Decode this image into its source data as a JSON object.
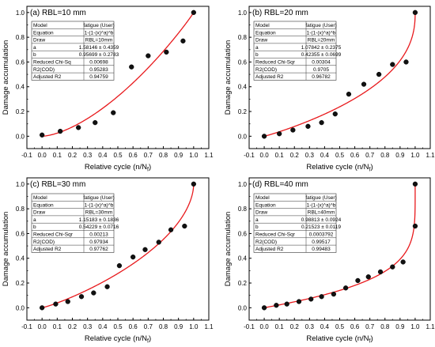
{
  "figure": {
    "shared_ylabel": "Damage accumulation",
    "shared_xlabel": "Relative cycle (n/N",
    "shared_xlabel_sub": "f",
    "shared_xlabel_close": ")"
  },
  "chart_data": [
    {
      "type": "scatter",
      "title": "(a) RBL=10 mm",
      "xlabel": "Relative cycle (n/Nf)",
      "ylabel": "Damage accumulation",
      "xlim": [
        -0.1,
        1.1
      ],
      "ylim": [
        -0.1,
        1.05
      ],
      "xticks": [
        "-0.1",
        "0.0",
        "0.1",
        "0.2",
        "0.3",
        "0.4",
        "0.5",
        "0.6",
        "0.7",
        "0.8",
        "0.9",
        "1.0",
        "1.1"
      ],
      "yticks": [
        "0.0",
        "0.2",
        "0.4",
        "0.6",
        "0.8",
        "1.0"
      ],
      "series": [
        {
          "x": [
            0.0,
            0.12,
            0.24,
            0.35,
            0.47,
            0.59,
            0.7,
            0.82,
            0.93,
            1.0
          ],
          "y": [
            0.01,
            0.04,
            0.07,
            0.11,
            0.19,
            0.56,
            0.65,
            0.68,
            0.77,
            1.0
          ]
        }
      ],
      "fit": {
        "type": "fatigue",
        "a": 1.58146,
        "b": 0.95699,
        "color": "#e8191c"
      },
      "stats_table": [
        [
          "Model",
          "fatigue (User)"
        ],
        [
          "Equation",
          "1-(1-(x)^a)^b"
        ],
        [
          "Draw",
          "RBL=10mm"
        ],
        [
          "a",
          "1.58146 ± 0.4359"
        ],
        [
          "b",
          "0.95699 ± 0.2783"
        ],
        [
          "Reduced Chi-Sq",
          "0.00698"
        ],
        [
          "R2(COD)",
          "0.95283"
        ],
        [
          "Adjusted R2",
          "0.94759"
        ]
      ]
    },
    {
      "type": "scatter",
      "title": "(b) RBL=20 mm",
      "xlabel": "Relative cycle (n/Nf)",
      "ylabel": "Damage accumulation",
      "xlim": [
        -0.1,
        1.1
      ],
      "ylim": [
        -0.1,
        1.05
      ],
      "xticks": [
        "-0.1",
        "0.0",
        "0.1",
        "0.2",
        "0.3",
        "0.4",
        "0.5",
        "0.6",
        "0.7",
        "0.8",
        "0.9",
        "1.0",
        "1.1"
      ],
      "yticks": [
        "0.0",
        "0.2",
        "0.4",
        "0.6",
        "0.8",
        "1.0"
      ],
      "series": [
        {
          "x": [
            0.0,
            0.1,
            0.19,
            0.29,
            0.38,
            0.47,
            0.56,
            0.66,
            0.76,
            0.85,
            0.94,
            1.0
          ],
          "y": [
            0.0,
            0.02,
            0.05,
            0.08,
            0.11,
            0.18,
            0.34,
            0.42,
            0.5,
            0.58,
            0.6,
            1.0
          ]
        }
      ],
      "fit": {
        "type": "fatigue",
        "a": 1.07842,
        "b": 0.42355,
        "color": "#e8191c"
      },
      "stats_table": [
        [
          "Model",
          "fatigue (User)"
        ],
        [
          "Equation",
          "1-(1-(x)^a)^b"
        ],
        [
          "Draw",
          "RBL=20mm"
        ],
        [
          "a",
          "1.07842 ± 0.2375"
        ],
        [
          "b",
          "0.42355 ± 0.0699"
        ],
        [
          "Reduced Chi-Sqr",
          "0.00304"
        ],
        [
          "R2(COD)",
          "0.9705"
        ],
        [
          "Adjusted R2",
          "0.96782"
        ]
      ]
    },
    {
      "type": "scatter",
      "title": "(c) RBL=30 mm",
      "xlabel": "Relative cycle (n/Nf)",
      "ylabel": "Damage accumulation",
      "xlim": [
        -0.1,
        1.1
      ],
      "ylim": [
        -0.1,
        1.05
      ],
      "xticks": [
        "-0.1",
        "0.0",
        "0.1",
        "0.2",
        "0.3",
        "0.4",
        "0.5",
        "0.6",
        "0.7",
        "0.8",
        "0.9",
        "1.0",
        "1.1"
      ],
      "yticks": [
        "0.0",
        "0.2",
        "0.4",
        "0.6",
        "0.8",
        "1.0"
      ],
      "series": [
        {
          "x": [
            0.0,
            0.09,
            0.17,
            0.26,
            0.34,
            0.43,
            0.51,
            0.6,
            0.68,
            0.77,
            0.85,
            0.94,
            1.0
          ],
          "y": [
            0.0,
            0.03,
            0.05,
            0.09,
            0.12,
            0.17,
            0.34,
            0.41,
            0.47,
            0.53,
            0.63,
            0.66,
            1.0
          ]
        }
      ],
      "fit": {
        "type": "fatigue",
        "a": 1.15183,
        "b": 0.54229,
        "color": "#e8191c"
      },
      "stats_table": [
        [
          "Model",
          "fatigue (User)"
        ],
        [
          "Equation",
          "1-(1-(x)^a)^b"
        ],
        [
          "Draw",
          "RBL=30mm"
        ],
        [
          "a",
          "1.15183 ± 0.1836"
        ],
        [
          "b",
          "0.54229 ± 0.0716"
        ],
        [
          "Reduced Chi-Sqr",
          "0.00213"
        ],
        [
          "R2(COD)",
          "0.97934"
        ],
        [
          "Adjusted R2",
          "0.97762"
        ]
      ]
    },
    {
      "type": "scatter",
      "title": "(d) RBL=40 mm",
      "xlabel": "Relative cycle (n/Nf)",
      "ylabel": "Damage accumulation",
      "xlim": [
        -0.1,
        1.1
      ],
      "ylim": [
        -0.1,
        1.05
      ],
      "xticks": [
        "-0.1",
        "0.0",
        "0.1",
        "0.2",
        "0.3",
        "0.4",
        "0.5",
        "0.6",
        "0.7",
        "0.8",
        "0.9",
        "1.0",
        "1.1"
      ],
      "yticks": [
        "0.0",
        "0.2",
        "0.4",
        "0.6",
        "0.8",
        "1.0"
      ],
      "series": [
        {
          "x": [
            0.0,
            0.08,
            0.15,
            0.23,
            0.31,
            0.38,
            0.46,
            0.54,
            0.62,
            0.69,
            0.77,
            0.85,
            0.92,
            1.0,
            1.0
          ],
          "y": [
            0.0,
            0.02,
            0.03,
            0.05,
            0.07,
            0.09,
            0.11,
            0.16,
            0.22,
            0.25,
            0.29,
            0.33,
            0.37,
            0.66,
            1.0
          ]
        }
      ],
      "fit": {
        "type": "fatigue",
        "a": 0.98813,
        "b": 0.21523,
        "color": "#e8191c"
      },
      "stats_table": [
        [
          "Model",
          "fatigue (User)"
        ],
        [
          "Equation",
          "1-(1-(x)^a)^b"
        ],
        [
          "Draw",
          "RBL=40mm"
        ],
        [
          "a",
          "0.98813 ± 0.0924"
        ],
        [
          "b",
          "0.21523 ± 0.0119"
        ],
        [
          "Reduced Chi-Sqr",
          "0.0003792"
        ],
        [
          "R2(COD)",
          "0.99517"
        ],
        [
          "Adjusted R2",
          "0.99483"
        ]
      ]
    }
  ]
}
